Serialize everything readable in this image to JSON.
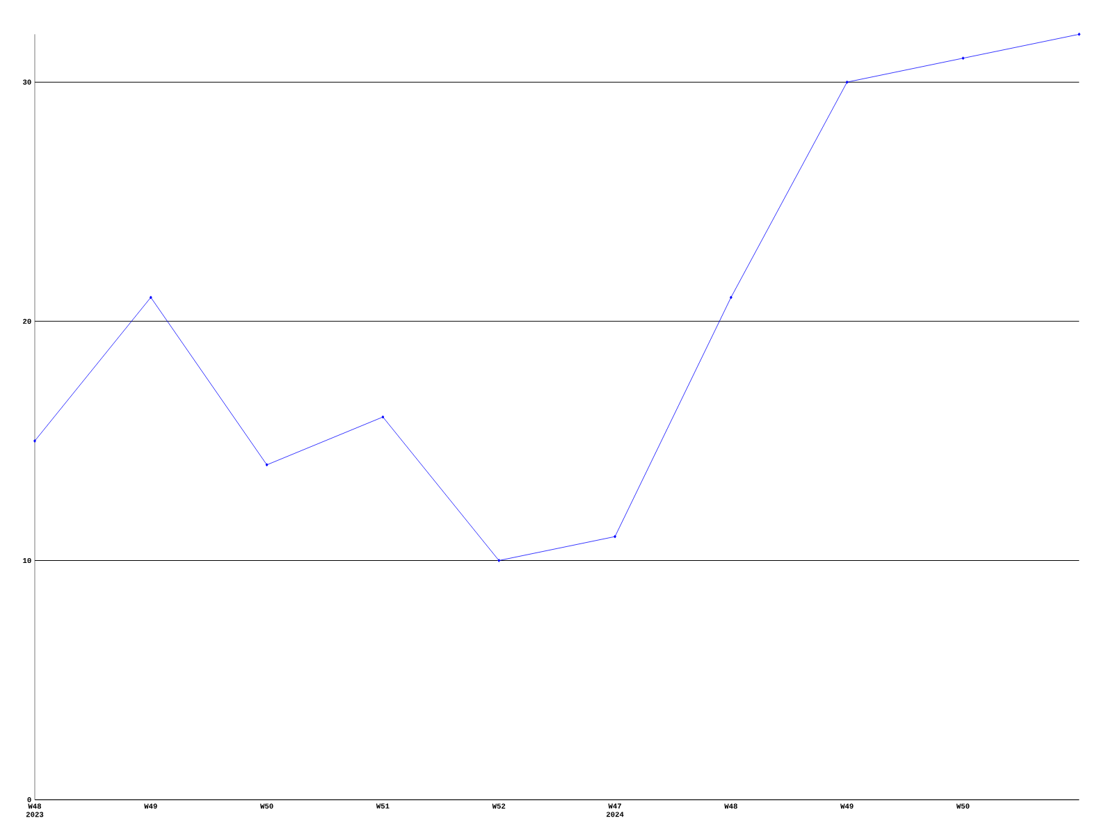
{
  "chart_data": {
    "type": "line",
    "categories": [
      "W48 2023",
      "W49",
      "W50",
      "W51",
      "W52",
      "W47 2024",
      "W48",
      "W49",
      "W50",
      null
    ],
    "values": [
      15,
      21,
      14,
      16,
      10,
      11,
      21,
      30,
      31,
      32
    ],
    "color": "#0000ff",
    "ylim": [
      0,
      32
    ],
    "yticks": [
      0,
      10,
      20,
      30
    ],
    "grid": "y",
    "marker": "diamond"
  }
}
